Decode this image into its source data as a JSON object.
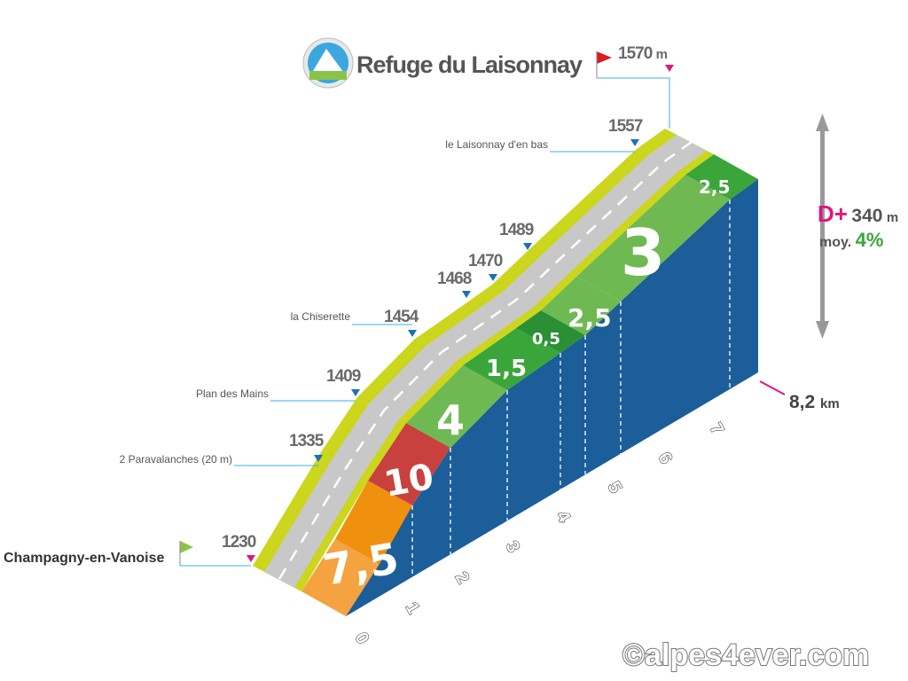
{
  "header": {
    "title": "Refuge du Laisonnay"
  },
  "summit": {
    "elevation": 1570,
    "unit": "m"
  },
  "start": {
    "name": "Champagny-en-Vanoise",
    "elevation": 1230
  },
  "waypoints": [
    {
      "label": "le Laisonnay d'en bas",
      "elevation": 1557
    },
    {
      "elevation": 1489
    },
    {
      "elevation": 1470
    },
    {
      "elevation": 1468
    },
    {
      "label": "la Chiserette",
      "elevation": 1454
    },
    {
      "label": "Plan des Mains",
      "elevation": 1409
    },
    {
      "label": "2 Paravalanches (20 m)",
      "elevation": 1335
    }
  ],
  "stats": {
    "gain_label": "D+",
    "gain": 340,
    "gain_unit": "m",
    "average_label": "moy.",
    "average": "4%"
  },
  "distance": {
    "value": "8,2",
    "unit": "km"
  },
  "km_ticks": [
    0,
    1,
    2,
    3,
    4,
    5,
    6,
    7
  ],
  "gradients": [
    "7,5",
    "10",
    "4",
    "1,5",
    "0,5",
    "2,5",
    "3",
    "2,5"
  ],
  "credit": "©alpes4ever.com"
}
